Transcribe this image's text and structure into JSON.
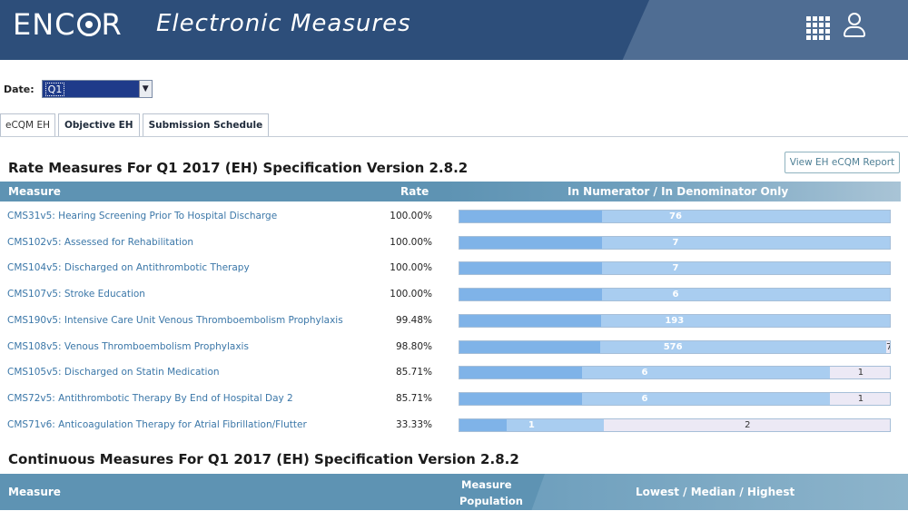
{
  "header": {
    "logo": "ENCOR",
    "title": "Electronic Measures",
    "apps_icon": "grid-icon",
    "user_icon": "user-icon"
  },
  "date": {
    "label": "Date:",
    "selected": "Q1"
  },
  "tabs": [
    {
      "label": "eCQM EH"
    },
    {
      "label": "Objective EH"
    },
    {
      "label": "Submission Schedule"
    }
  ],
  "rate_section": {
    "title": "Rate Measures For Q1 2017 (EH) Specification Version 2.8.2",
    "report_button": "View EH eCQM Report",
    "columns": {
      "measure": "Measure",
      "rate": "Rate",
      "bars": "In Numerator / In Denominator Only"
    },
    "rows": [
      {
        "name": "CMS31v5: Hearing Screening Prior To Hospital Discharge",
        "rate": "100.00%",
        "numerator": "76",
        "denominator_only": "",
        "fraction": 1.0
      },
      {
        "name": "CMS102v5: Assessed for Rehabilitation",
        "rate": "100.00%",
        "numerator": "7",
        "denominator_only": "",
        "fraction": 1.0
      },
      {
        "name": "CMS104v5: Discharged on Antithrombotic Therapy",
        "rate": "100.00%",
        "numerator": "7",
        "denominator_only": "",
        "fraction": 1.0
      },
      {
        "name": "CMS107v5: Stroke Education",
        "rate": "100.00%",
        "numerator": "6",
        "denominator_only": "",
        "fraction": 1.0
      },
      {
        "name": "CMS190v5: Intensive Care Unit Venous Thromboembolism Prophylaxis",
        "rate": "99.48%",
        "numerator": "193",
        "denominator_only": "",
        "fraction": 0.9948
      },
      {
        "name": "CMS108v5: Venous Thromboembolism Prophylaxis",
        "rate": "98.80%",
        "numerator": "576",
        "denominator_only": "7",
        "fraction": 0.988
      },
      {
        "name": "CMS105v5: Discharged on Statin Medication",
        "rate": "85.71%",
        "numerator": "6",
        "denominator_only": "1",
        "fraction": 0.8571
      },
      {
        "name": "CMS72v5: Antithrombotic Therapy By End of Hospital Day 2",
        "rate": "85.71%",
        "numerator": "6",
        "denominator_only": "1",
        "fraction": 0.8571
      },
      {
        "name": "CMS71v6: Anticoagulation Therapy for Atrial Fibrillation/Flutter",
        "rate": "33.33%",
        "numerator": "1",
        "denominator_only": "2",
        "fraction": 0.3333
      }
    ]
  },
  "continuous_section": {
    "title": "Continuous Measures For Q1 2017 (EH) Specification Version 2.8.2",
    "columns": {
      "measure": "Measure",
      "population_line1": "Measure",
      "population_line2": "Population",
      "stats": "Lowest / Median / Highest"
    }
  }
}
